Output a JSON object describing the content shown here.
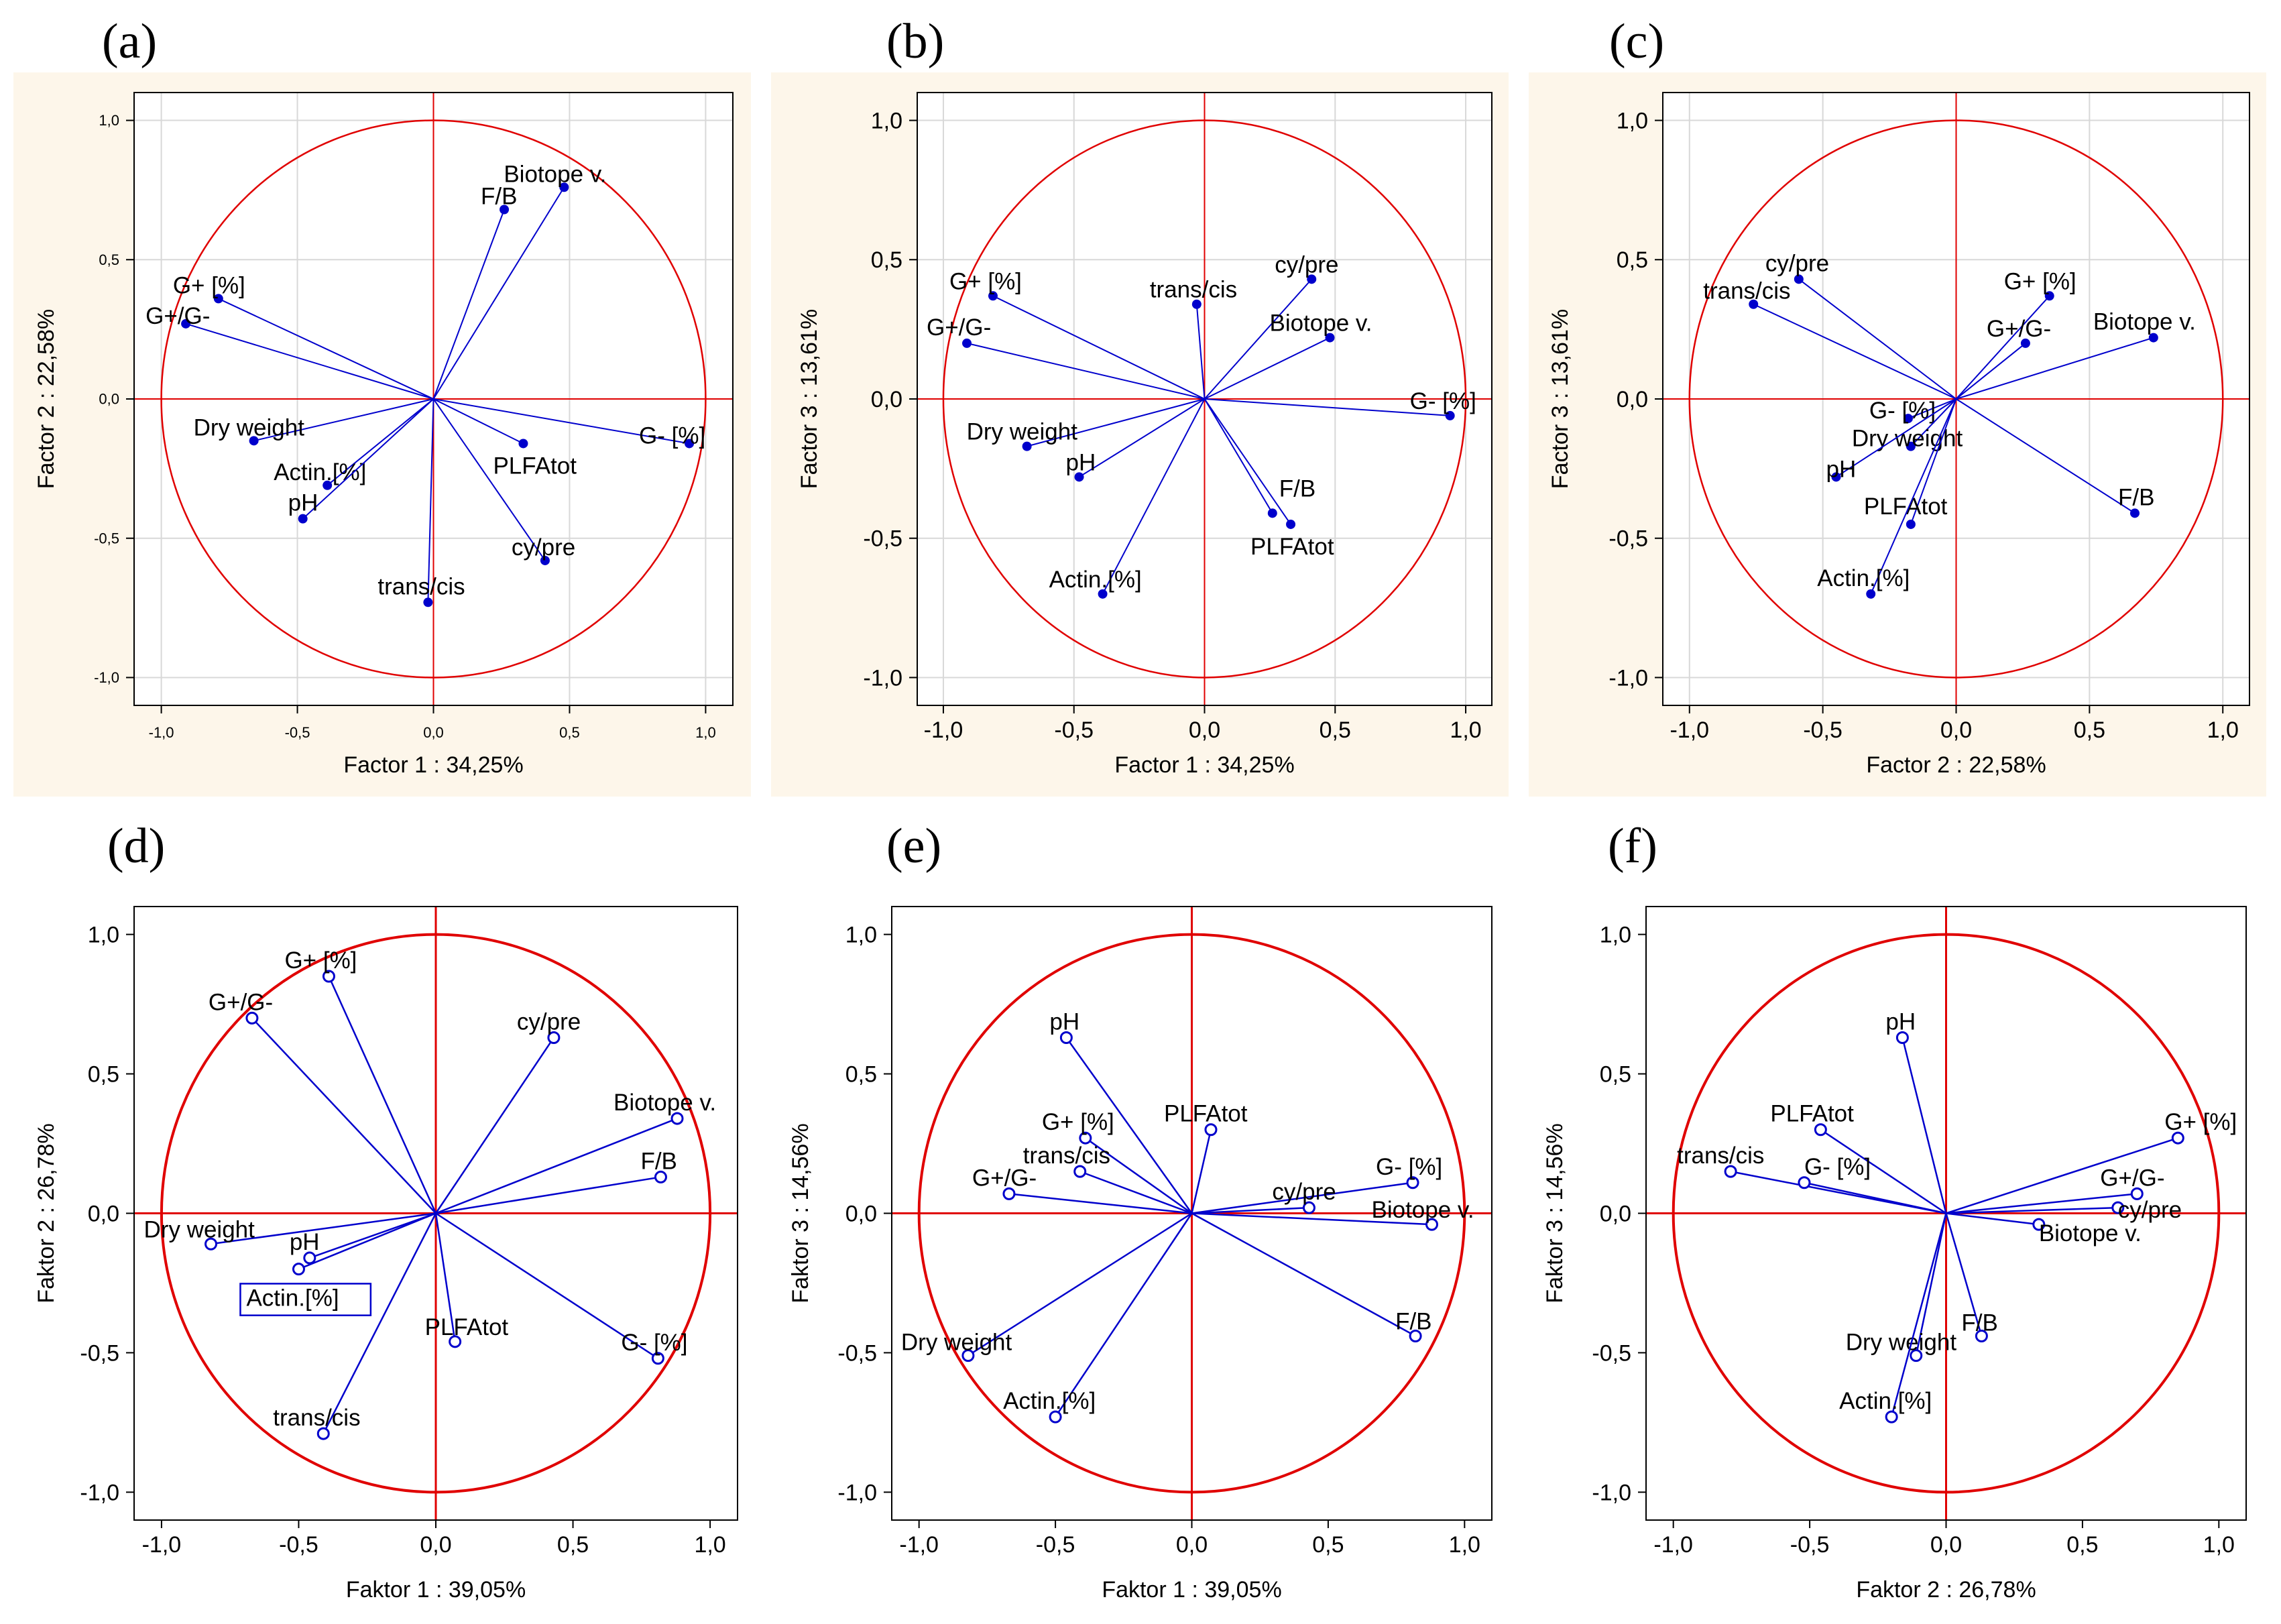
{
  "colors": {
    "circle": "#e00000",
    "vector": "#0000cc",
    "panel_bg_top": "#fdf6ea",
    "grid": "#d8d8d8"
  },
  "chart_data": [
    {
      "panel": "(a)",
      "type": "scatter",
      "style": "filled",
      "xlabel": "Factor 1 : 34,25%",
      "ylabel": "Factor 2 : 22,58%",
      "xlim": [
        -1.1,
        1.1
      ],
      "ylim": [
        -1.1,
        1.1
      ],
      "xticks": [
        "-1,0",
        "-0,5",
        "0,0",
        "0,5",
        "1,0"
      ],
      "yticks": [
        "1,0",
        "0,5",
        "0,0",
        "-0,5",
        "-1,0"
      ],
      "grid": true,
      "small_ticks": true,
      "points": [
        {
          "label": "Biotope v.",
          "x": 0.48,
          "y": 0.76
        },
        {
          "label": "F/B",
          "x": 0.26,
          "y": 0.68
        },
        {
          "label": "G+ [%]",
          "x": -0.79,
          "y": 0.36
        },
        {
          "label": "G+/G-",
          "x": -0.91,
          "y": 0.27
        },
        {
          "label": "Dry weight",
          "x": -0.66,
          "y": -0.15
        },
        {
          "label": "Actin.[%]",
          "x": -0.39,
          "y": -0.31
        },
        {
          "label": "pH",
          "x": -0.48,
          "y": -0.43
        },
        {
          "label": "G- [%]",
          "x": 0.94,
          "y": -0.16
        },
        {
          "label": "PLFAtot",
          "x": 0.33,
          "y": -0.16
        },
        {
          "label": "cy/pre",
          "x": 0.41,
          "y": -0.58
        },
        {
          "label": "trans/cis",
          "x": -0.02,
          "y": -0.73
        }
      ]
    },
    {
      "panel": "(b)",
      "type": "scatter",
      "style": "filled",
      "xlabel": "Factor 1 : 34,25%",
      "ylabel": "Factor 3 : 13,61%",
      "xlim": [
        -1.1,
        1.1
      ],
      "ylim": [
        -1.1,
        1.1
      ],
      "xticks": [
        "-1,0",
        "-0,5",
        "0,0",
        "0,5",
        "1,0"
      ],
      "yticks": [
        "1,0",
        "0,5",
        "0,0",
        "-0,5",
        "-1,0"
      ],
      "grid": true,
      "small_ticks": false,
      "points": [
        {
          "label": "G+ [%]",
          "x": -0.81,
          "y": 0.37
        },
        {
          "label": "G+/G-",
          "x": -0.91,
          "y": 0.2
        },
        {
          "label": "trans/cis",
          "x": -0.03,
          "y": 0.34
        },
        {
          "label": "cy/pre",
          "x": 0.41,
          "y": 0.43
        },
        {
          "label": "Biotope v.",
          "x": 0.48,
          "y": 0.22
        },
        {
          "label": "G- [%]",
          "x": 0.94,
          "y": -0.06
        },
        {
          "label": "Dry weight",
          "x": -0.68,
          "y": -0.17
        },
        {
          "label": "pH",
          "x": -0.48,
          "y": -0.28
        },
        {
          "label": "F/B",
          "x": 0.26,
          "y": -0.41
        },
        {
          "label": "PLFAtot",
          "x": 0.33,
          "y": -0.45
        },
        {
          "label": "Actin.[%]",
          "x": -0.39,
          "y": -0.7
        }
      ]
    },
    {
      "panel": "(c)",
      "type": "scatter",
      "style": "filled",
      "xlabel": "Factor 2 : 22,58%",
      "ylabel": "Factor 3 : 13,61%",
      "xlim": [
        -1.1,
        1.1
      ],
      "ylim": [
        -1.1,
        1.1
      ],
      "xticks": [
        "-1,0",
        "-0,5",
        "0,0",
        "0,5",
        "1,0"
      ],
      "yticks": [
        "1,0",
        "0,5",
        "0,0",
        "-0,5",
        "-1,0"
      ],
      "grid": true,
      "small_ticks": false,
      "points": [
        {
          "label": "cy/pre",
          "x": -0.59,
          "y": 0.43
        },
        {
          "label": "trans/cis",
          "x": -0.76,
          "y": 0.34
        },
        {
          "label": "G+ [%]",
          "x": 0.35,
          "y": 0.37
        },
        {
          "label": "G+/G-",
          "x": 0.26,
          "y": 0.2
        },
        {
          "label": "Biotope v.",
          "x": 0.74,
          "y": 0.22
        },
        {
          "label": "G- [%]",
          "x": -0.18,
          "y": -0.07
        },
        {
          "label": "Dry weight",
          "x": -0.17,
          "y": -0.17
        },
        {
          "label": "pH",
          "x": -0.45,
          "y": -0.28
        },
        {
          "label": "PLFAtot",
          "x": -0.17,
          "y": -0.45
        },
        {
          "label": "F/B",
          "x": 0.67,
          "y": -0.41
        },
        {
          "label": "Actin.[%]",
          "x": -0.32,
          "y": -0.7
        }
      ]
    },
    {
      "panel": "(d)",
      "type": "scatter",
      "style": "open",
      "xlabel": "Faktor 1 : 39,05%",
      "ylabel": "Faktor 2 : 26,78%",
      "xlim": [
        -1.1,
        1.1
      ],
      "ylim": [
        -1.1,
        1.1
      ],
      "xticks": [
        "-1,0",
        "-0,5",
        "0,0",
        "0,5",
        "1,0"
      ],
      "yticks": [
        "1,0",
        "0,5",
        "0,0",
        "-0,5",
        "-1,0"
      ],
      "grid": false,
      "small_ticks": false,
      "points": [
        {
          "label": "G+ [%]",
          "x": -0.39,
          "y": 0.85
        },
        {
          "label": "G+/G-",
          "x": -0.67,
          "y": 0.7
        },
        {
          "label": "cy/pre",
          "x": 0.43,
          "y": 0.63
        },
        {
          "label": "Biotope v.",
          "x": 0.88,
          "y": 0.34
        },
        {
          "label": "F/B",
          "x": 0.82,
          "y": 0.13
        },
        {
          "label": "Dry weight",
          "x": -0.82,
          "y": -0.11
        },
        {
          "label": "pH",
          "x": -0.46,
          "y": -0.16
        },
        {
          "label": "Actin.[%]",
          "x": -0.5,
          "y": -0.2,
          "boxed": true
        },
        {
          "label": "PLFAtot",
          "x": 0.07,
          "y": -0.46
        },
        {
          "label": "G- [%]",
          "x": 0.81,
          "y": -0.52
        },
        {
          "label": "trans/cis",
          "x": -0.41,
          "y": -0.79
        }
      ]
    },
    {
      "panel": "(e)",
      "type": "scatter",
      "style": "open",
      "xlabel": "Faktor 1 : 39,05%",
      "ylabel": "Faktor 3 : 14,56%",
      "xlim": [
        -1.1,
        1.1
      ],
      "ylim": [
        -1.1,
        1.1
      ],
      "xticks": [
        "-1,0",
        "-0,5",
        "0,0",
        "0,5",
        "1,0"
      ],
      "yticks": [
        "1,0",
        "0,5",
        "0,0",
        "-0,5",
        "-1,0"
      ],
      "grid": false,
      "small_ticks": false,
      "points": [
        {
          "label": "pH",
          "x": -0.46,
          "y": 0.63
        },
        {
          "label": "PLFAtot",
          "x": 0.07,
          "y": 0.3
        },
        {
          "label": "G+ [%]",
          "x": -0.39,
          "y": 0.27
        },
        {
          "label": "trans/cis",
          "x": -0.41,
          "y": 0.15
        },
        {
          "label": "G+/G-",
          "x": -0.67,
          "y": 0.07
        },
        {
          "label": "G- [%]",
          "x": 0.81,
          "y": 0.11
        },
        {
          "label": "cy/pre",
          "x": 0.43,
          "y": 0.02
        },
        {
          "label": "Biotope v.",
          "x": 0.88,
          "y": -0.04
        },
        {
          "label": "F/B",
          "x": 0.82,
          "y": -0.44
        },
        {
          "label": "Dry weight",
          "x": -0.82,
          "y": -0.51
        },
        {
          "label": "Actin.[%]",
          "x": -0.5,
          "y": -0.73
        }
      ]
    },
    {
      "panel": "(f)",
      "type": "scatter",
      "style": "open",
      "xlabel": "Faktor 2 : 26,78%",
      "ylabel": "Faktor 3 : 14,56%",
      "xlim": [
        -1.1,
        1.1
      ],
      "ylim": [
        -1.1,
        1.1
      ],
      "xticks": [
        "-1,0",
        "-0,5",
        "0,0",
        "0,5",
        "1,0"
      ],
      "yticks": [
        "1,0",
        "0,5",
        "0,0",
        "-0,5",
        "-1,0"
      ],
      "grid": false,
      "small_ticks": false,
      "points": [
        {
          "label": "pH",
          "x": -0.16,
          "y": 0.63
        },
        {
          "label": "PLFAtot",
          "x": -0.46,
          "y": 0.3
        },
        {
          "label": "trans/cis",
          "x": -0.79,
          "y": 0.15
        },
        {
          "label": "G- [%]",
          "x": -0.52,
          "y": 0.11
        },
        {
          "label": "G+ [%]",
          "x": 0.85,
          "y": 0.27
        },
        {
          "label": "G+/G-",
          "x": 0.7,
          "y": 0.07
        },
        {
          "label": "cy/pre",
          "x": 0.63,
          "y": 0.02
        },
        {
          "label": "Biotope v.",
          "x": 0.34,
          "y": -0.04
        },
        {
          "label": "F/B",
          "x": 0.13,
          "y": -0.44
        },
        {
          "label": "Dry weight",
          "x": -0.11,
          "y": -0.51
        },
        {
          "label": "Actin.[%]",
          "x": -0.2,
          "y": -0.73
        }
      ]
    }
  ]
}
